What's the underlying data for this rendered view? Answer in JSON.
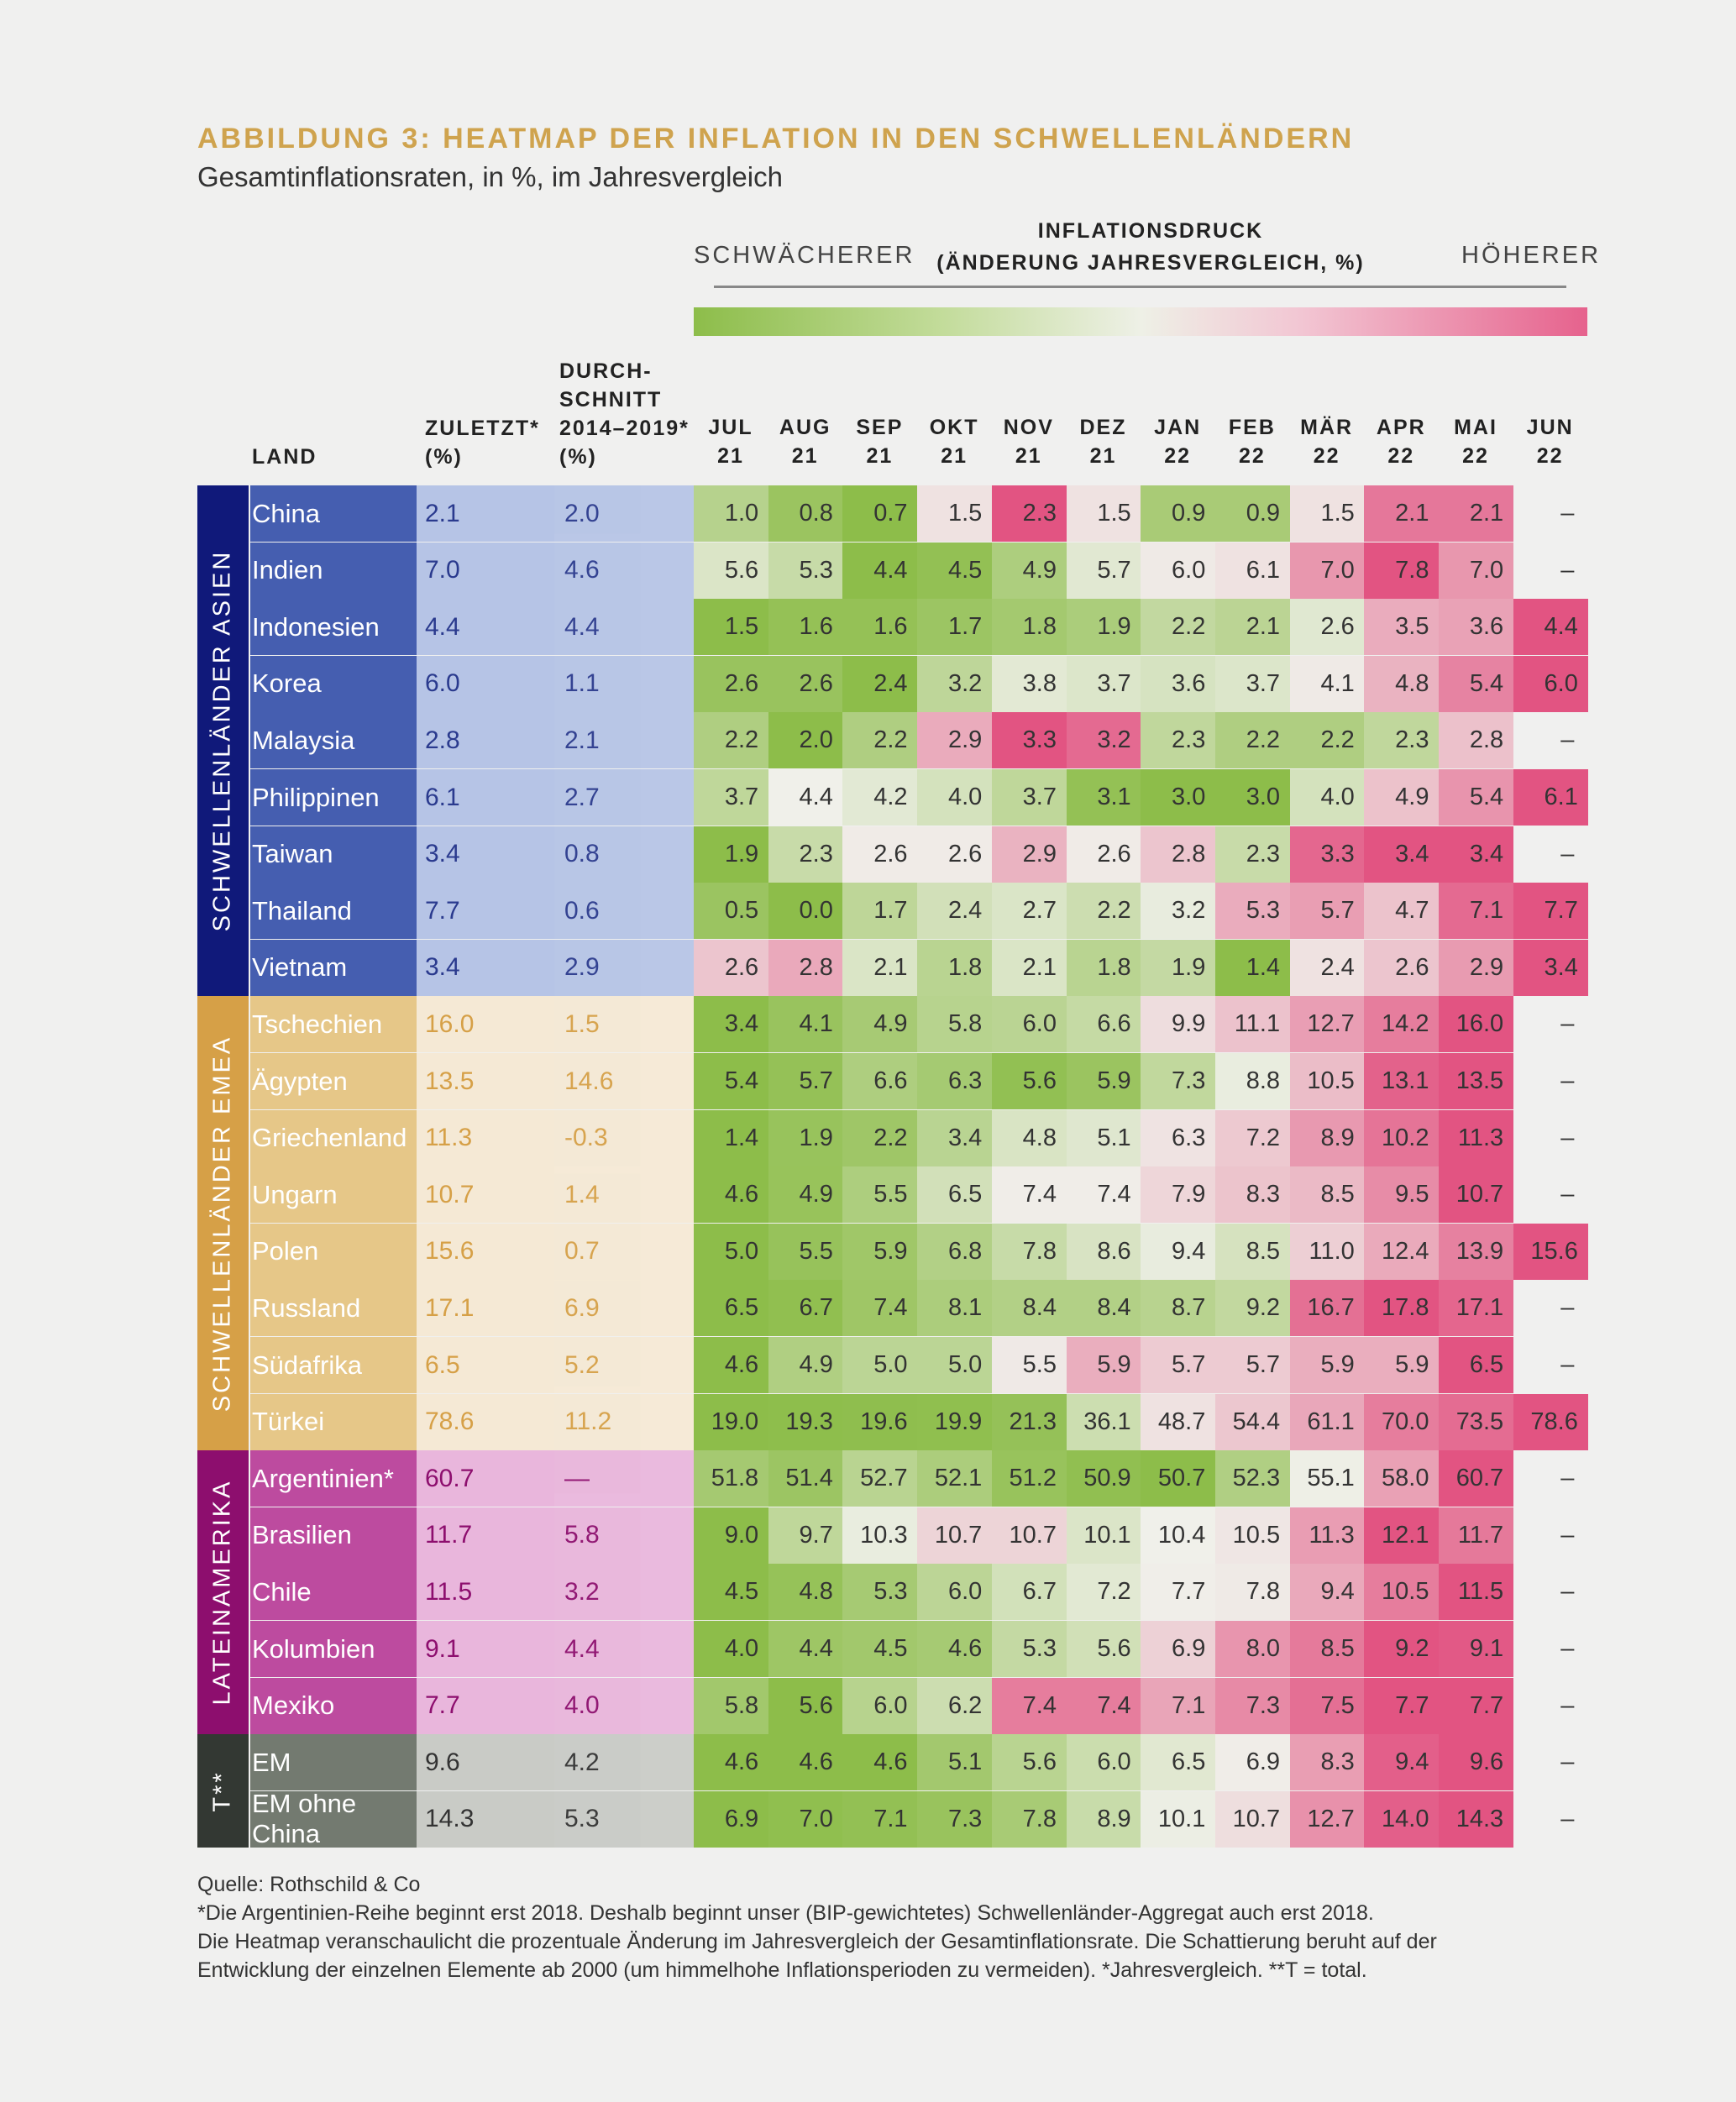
{
  "title": "ABBILDUNG 3: HEATMAP DER INFLATION IN DEN SCHWELLENLÄNDERN",
  "subtitle": "Gesamtinflationsraten, in %, im Jahresvergleich",
  "pressure": {
    "title_line1": "INFLATIONSDRUCK",
    "title_line2": "(ÄNDERUNG JAHRESVERGLEICH, %)",
    "weaker": "SCHWÄCHERER",
    "higher": "HÖHERER",
    "scale_colors": [
      "#8dbd4a",
      "#eef0e6",
      "#e6628d"
    ]
  },
  "headers": {
    "land": "LAND",
    "latest": [
      "ZULETZT*",
      "(%)"
    ],
    "avg": [
      "DURCH-",
      "SCHNITT",
      "2014–2019*",
      "(%)"
    ]
  },
  "footnotes": [
    "Quelle: Rothschild & Co",
    "*Die Argentinien-Reihe beginnt erst 2018. Deshalb beginnt unser (BIP-gewichtetes) Schwellenländer-Aggregat auch erst 2018.",
    "Die Heatmap veranschaulicht die prozentuale Änderung im Jahresvergleich der Gesamtinflationsrate. Die Schattierung beruht auf der",
    "Entwicklung der einzelnen Elemente ab 2000 (um himmelhohe Inflationsperioden zu vermeiden). *Jahresvergleich. **T = total."
  ],
  "regions": [
    {
      "label": "SCHWELLENLÄNDER ASIEN",
      "rows": 9,
      "dark": "#10197a",
      "mid": "#455eb0",
      "light": "#b6c4e6",
      "text": "#2a3a8e",
      "country_text": "#ffffff"
    },
    {
      "label": "SCHWELLENLÄNDER EMEA",
      "rows": 8,
      "dark": "#d6a047",
      "mid": "#e6c788",
      "light": "#f5e9d5",
      "text": "#d6a047",
      "country_text": "#ffffff"
    },
    {
      "label": "LATEINAMERIKA",
      "rows": 5,
      "dark": "#8d0e6e",
      "mid": "#bd4b9f",
      "light": "#e9b6dc",
      "text": "#8d0e6e",
      "country_text": "#ffffff"
    },
    {
      "label": "T**",
      "rows": 2,
      "dark": "#333833",
      "mid": "#737a70",
      "light": "#c9cbc6",
      "text": "#333",
      "country_text": "#ffffff"
    }
  ],
  "chart_data": {
    "type": "heatmap",
    "months": [
      [
        "JUL",
        "21"
      ],
      [
        "AUG",
        "21"
      ],
      [
        "SEP",
        "21"
      ],
      [
        "OKT",
        "21"
      ],
      [
        "NOV",
        "21"
      ],
      [
        "DEZ",
        "21"
      ],
      [
        "JAN",
        "22"
      ],
      [
        "FEB",
        "22"
      ],
      [
        "MÄR",
        "22"
      ],
      [
        "APR",
        "22"
      ],
      [
        "MAI",
        "22"
      ],
      [
        "JUN",
        "22"
      ]
    ],
    "rows": [
      {
        "country": "China",
        "latest": "2.1",
        "avg": "2.0",
        "values": [
          "1.0",
          "0.8",
          "0.7",
          "1.5",
          "2.3",
          "1.5",
          "0.9",
          "0.9",
          "1.5",
          "2.1",
          "2.1",
          "–"
        ]
      },
      {
        "country": "Indien",
        "latest": "7.0",
        "avg": "4.6",
        "values": [
          "5.6",
          "5.3",
          "4.4",
          "4.5",
          "4.9",
          "5.7",
          "6.0",
          "6.1",
          "7.0",
          "7.8",
          "7.0",
          "–"
        ]
      },
      {
        "country": "Indonesien",
        "latest": "4.4",
        "avg": "4.4",
        "values": [
          "1.5",
          "1.6",
          "1.6",
          "1.7",
          "1.8",
          "1.9",
          "2.2",
          "2.1",
          "2.6",
          "3.5",
          "3.6",
          "4.4"
        ]
      },
      {
        "country": "Korea",
        "latest": "6.0",
        "avg": "1.1",
        "values": [
          "2.6",
          "2.6",
          "2.4",
          "3.2",
          "3.8",
          "3.7",
          "3.6",
          "3.7",
          "4.1",
          "4.8",
          "5.4",
          "6.0"
        ]
      },
      {
        "country": "Malaysia",
        "latest": "2.8",
        "avg": "2.1",
        "values": [
          "2.2",
          "2.0",
          "2.2",
          "2.9",
          "3.3",
          "3.2",
          "2.3",
          "2.2",
          "2.2",
          "2.3",
          "2.8",
          "–"
        ]
      },
      {
        "country": "Philippinen",
        "latest": "6.1",
        "avg": "2.7",
        "values": [
          "3.7",
          "4.4",
          "4.2",
          "4.0",
          "3.7",
          "3.1",
          "3.0",
          "3.0",
          "4.0",
          "4.9",
          "5.4",
          "6.1"
        ]
      },
      {
        "country": "Taiwan",
        "latest": "3.4",
        "avg": "0.8",
        "values": [
          "1.9",
          "2.3",
          "2.6",
          "2.6",
          "2.9",
          "2.6",
          "2.8",
          "2.3",
          "3.3",
          "3.4",
          "3.4",
          "–"
        ]
      },
      {
        "country": "Thailand",
        "latest": "7.7",
        "avg": "0.6",
        "values": [
          "0.5",
          "0.0",
          "1.7",
          "2.4",
          "2.7",
          "2.2",
          "3.2",
          "5.3",
          "5.7",
          "4.7",
          "7.1",
          "7.7"
        ]
      },
      {
        "country": "Vietnam",
        "latest": "3.4",
        "avg": "2.9",
        "values": [
          "2.6",
          "2.8",
          "2.1",
          "1.8",
          "2.1",
          "1.8",
          "1.9",
          "1.4",
          "2.4",
          "2.6",
          "2.9",
          "3.4"
        ]
      },
      {
        "country": "Tschechien",
        "latest": "16.0",
        "avg": "1.5",
        "values": [
          "3.4",
          "4.1",
          "4.9",
          "5.8",
          "6.0",
          "6.6",
          "9.9",
          "11.1",
          "12.7",
          "14.2",
          "16.0",
          "–"
        ]
      },
      {
        "country": "Ägypten",
        "latest": "13.5",
        "avg": "14.6",
        "values": [
          "5.4",
          "5.7",
          "6.6",
          "6.3",
          "5.6",
          "5.9",
          "7.3",
          "8.8",
          "10.5",
          "13.1",
          "13.5",
          "–"
        ]
      },
      {
        "country": "Griechenland",
        "latest": "11.3",
        "avg": "-0.3",
        "values": [
          "1.4",
          "1.9",
          "2.2",
          "3.4",
          "4.8",
          "5.1",
          "6.3",
          "7.2",
          "8.9",
          "10.2",
          "11.3",
          "–"
        ]
      },
      {
        "country": "Ungarn",
        "latest": "10.7",
        "avg": "1.4",
        "values": [
          "4.6",
          "4.9",
          "5.5",
          "6.5",
          "7.4",
          "7.4",
          "7.9",
          "8.3",
          "8.5",
          "9.5",
          "10.7",
          "–"
        ]
      },
      {
        "country": "Polen",
        "latest": "15.6",
        "avg": "0.7",
        "values": [
          "5.0",
          "5.5",
          "5.9",
          "6.8",
          "7.8",
          "8.6",
          "9.4",
          "8.5",
          "11.0",
          "12.4",
          "13.9",
          "15.6"
        ]
      },
      {
        "country": "Russland",
        "latest": "17.1",
        "avg": "6.9",
        "values": [
          "6.5",
          "6.7",
          "7.4",
          "8.1",
          "8.4",
          "8.4",
          "8.7",
          "9.2",
          "16.7",
          "17.8",
          "17.1",
          "–"
        ]
      },
      {
        "country": "Südafrika",
        "latest": "6.5",
        "avg": "5.2",
        "values": [
          "4.6",
          "4.9",
          "5.0",
          "5.0",
          "5.5",
          "5.9",
          "5.7",
          "5.7",
          "5.9",
          "5.9",
          "6.5",
          "–"
        ]
      },
      {
        "country": "Türkei",
        "latest": "78.6",
        "avg": "11.2",
        "values": [
          "19.0",
          "19.3",
          "19.6",
          "19.9",
          "21.3",
          "36.1",
          "48.7",
          "54.4",
          "61.1",
          "70.0",
          "73.5",
          "78.6"
        ]
      },
      {
        "country": "Argentinien*",
        "latest": "60.7",
        "avg": "—",
        "values": [
          "51.8",
          "51.4",
          "52.7",
          "52.1",
          "51.2",
          "50.9",
          "50.7",
          "52.3",
          "55.1",
          "58.0",
          "60.7",
          "–"
        ]
      },
      {
        "country": "Brasilien",
        "latest": "11.7",
        "avg": "5.8",
        "values": [
          "9.0",
          "9.7",
          "10.3",
          "10.7",
          "10.7",
          "10.1",
          "10.4",
          "10.5",
          "11.3",
          "12.1",
          "11.7",
          "–"
        ]
      },
      {
        "country": "Chile",
        "latest": "11.5",
        "avg": "3.2",
        "values": [
          "4.5",
          "4.8",
          "5.3",
          "6.0",
          "6.7",
          "7.2",
          "7.7",
          "7.8",
          "9.4",
          "10.5",
          "11.5",
          "–"
        ]
      },
      {
        "country": "Kolumbien",
        "latest": "9.1",
        "avg": "4.4",
        "values": [
          "4.0",
          "4.4",
          "4.5",
          "4.6",
          "5.3",
          "5.6",
          "6.9",
          "8.0",
          "8.5",
          "9.2",
          "9.1",
          "–"
        ]
      },
      {
        "country": "Mexiko",
        "latest": "7.7",
        "avg": "4.0",
        "values": [
          "5.8",
          "5.6",
          "6.0",
          "6.2",
          "7.4",
          "7.4",
          "7.1",
          "7.3",
          "7.5",
          "7.7",
          "7.7",
          "–"
        ]
      },
      {
        "country": "EM",
        "latest": "9.6",
        "avg": "4.2",
        "values": [
          "4.6",
          "4.6",
          "4.6",
          "5.1",
          "5.6",
          "6.0",
          "6.5",
          "6.9",
          "8.3",
          "9.4",
          "9.6",
          "–"
        ]
      },
      {
        "country": "EM ohne China",
        "latest": "14.3",
        "avg": "5.3",
        "values": [
          "6.9",
          "7.0",
          "7.1",
          "7.3",
          "7.8",
          "8.9",
          "10.1",
          "10.7",
          "12.7",
          "14.0",
          "14.3",
          "–"
        ]
      }
    ]
  }
}
